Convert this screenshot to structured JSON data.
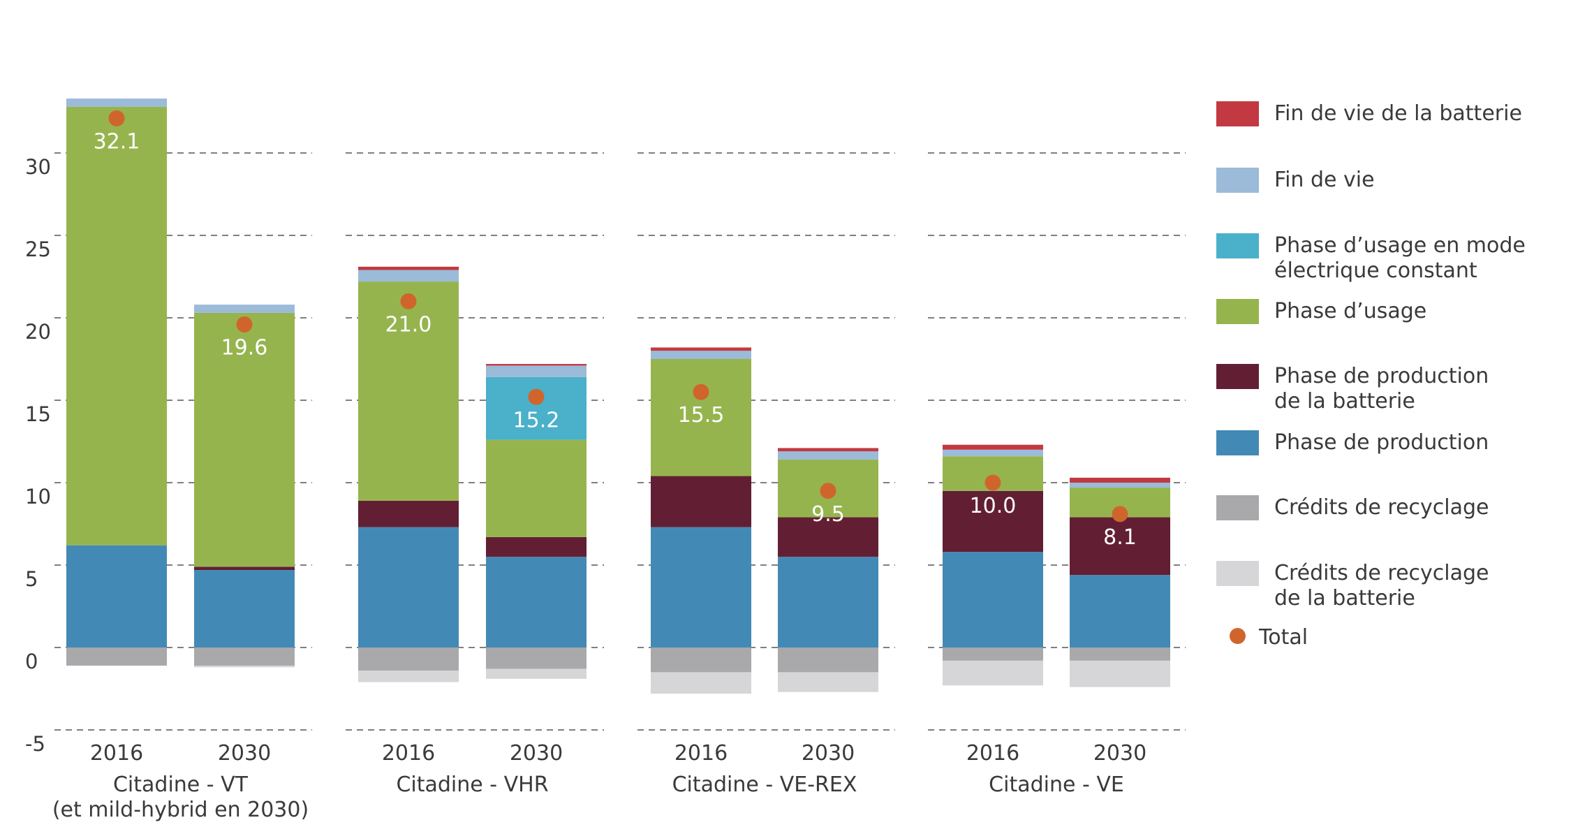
{
  "chart_data": {
    "type": "bar",
    "stacked": true,
    "ylim": [
      -5,
      35
    ],
    "yticks": [
      -5,
      0,
      5,
      10,
      15,
      20,
      25,
      30
    ],
    "grid": true,
    "legend_position": "right",
    "groups": [
      {
        "label": "Citadine - VT\n(et mild-hybrid en 2030)",
        "bars": [
          "2016",
          "2030"
        ]
      },
      {
        "label": "Citadine - VHR",
        "bars": [
          "2016",
          "2030"
        ]
      },
      {
        "label": "Citadine - VE-REX",
        "bars": [
          "2016",
          "2030"
        ]
      },
      {
        "label": "Citadine - VE",
        "bars": [
          "2016",
          "2030"
        ]
      }
    ],
    "categories": [
      "2016",
      "2030",
      "2016",
      "2030",
      "2016",
      "2030",
      "2016",
      "2030"
    ],
    "series": [
      {
        "name": "Phase de production",
        "color": "#4389b5",
        "values": [
          6.2,
          4.7,
          7.3,
          5.5,
          7.3,
          5.5,
          5.8,
          4.4
        ]
      },
      {
        "name": "Phase de production\nde la batterie",
        "color": "#621f33",
        "values": [
          0.0,
          0.2,
          1.6,
          1.2,
          3.1,
          2.4,
          3.7,
          3.5
        ]
      },
      {
        "name": "Phase d’usage",
        "color": "#96b44e",
        "values": [
          26.6,
          15.4,
          13.3,
          5.9,
          7.1,
          3.5,
          2.1,
          1.8
        ]
      },
      {
        "name": "Phase d’usage en mode\nélectrique constant",
        "color": "#4bb0c9",
        "values": [
          0,
          0,
          0,
          3.8,
          0,
          0,
          0,
          0
        ]
      },
      {
        "name": "Fin de vie",
        "color": "#9bbbd8",
        "values": [
          0.5,
          0.5,
          0.7,
          0.7,
          0.5,
          0.5,
          0.4,
          0.3
        ]
      },
      {
        "name": "Fin de vie de la batterie",
        "color": "#c23941",
        "values": [
          0,
          0,
          0.2,
          0.1,
          0.2,
          0.2,
          0.3,
          0.3
        ]
      },
      {
        "name": "Crédits de recyclage",
        "color": "#a9a8ab",
        "values": [
          -1.1,
          -1.1,
          -1.4,
          -1.3,
          -1.5,
          -1.5,
          -0.8,
          -0.8
        ]
      },
      {
        "name": "Crédits de recyclage\nde la batterie",
        "color": "#d6d6d8",
        "values": [
          0,
          -0.1,
          -0.7,
          -0.6,
          -1.3,
          -1.2,
          -1.5,
          -1.6
        ]
      }
    ],
    "total": {
      "name": "Total",
      "color": "#d0652c",
      "values": [
        32.1,
        19.6,
        21.0,
        15.2,
        15.5,
        9.5,
        10.0,
        8.1
      ],
      "labels": [
        "32.1",
        "19.6",
        "21.0",
        "15.2",
        "15.5",
        "9.5",
        "10.0",
        "8.1"
      ]
    },
    "legend_order": [
      "Fin de vie de la batterie",
      "Fin de vie",
      "Phase d’usage en mode\nélectrique constant",
      "Phase d’usage",
      "Phase de production\nde la batterie",
      "Phase de production",
      "Crédits de recyclage",
      "Crédits de recyclage\nde la batterie",
      "Total"
    ]
  }
}
